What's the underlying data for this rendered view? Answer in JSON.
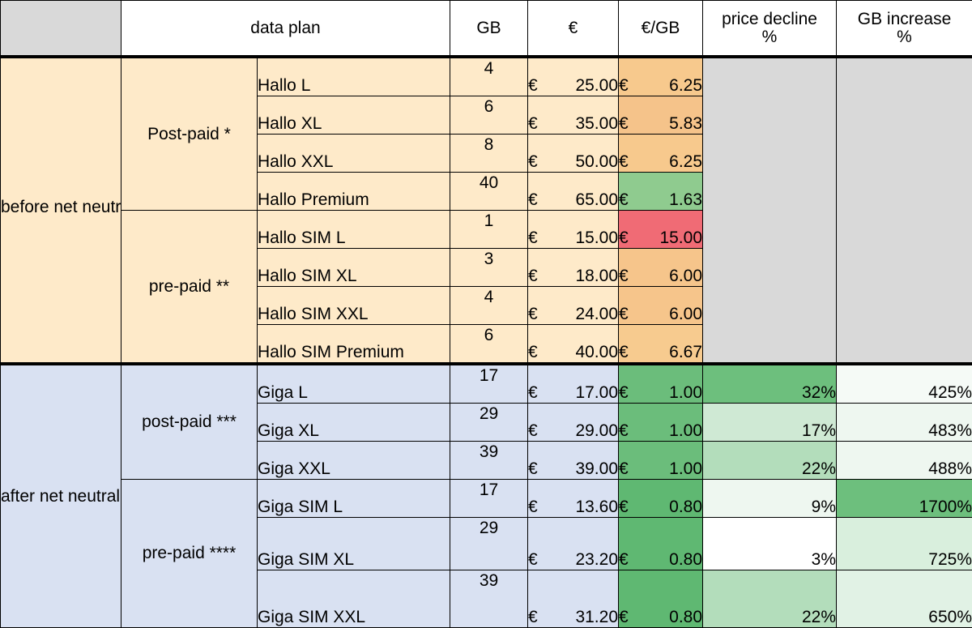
{
  "header": {
    "data_plan": "data plan",
    "gb": "GB",
    "eur": "€",
    "eur_per_gb": "€/GB",
    "price_decline_line1": "price decline",
    "price_decline_line2": "%",
    "gb_increase_line1": "GB increase",
    "gb_increase_line2": "%"
  },
  "before": {
    "label": "before net neutrality intervention",
    "postpaid_label": "Post-paid  *",
    "prepaid_label": "pre-paid **",
    "rows": [
      {
        "plan": "Hallo L",
        "gb": "4",
        "eur": "25.00",
        "eur_per_gb": "6.25",
        "color": "#f7c98d"
      },
      {
        "plan": "Hallo XL",
        "gb": "6",
        "eur": "35.00",
        "eur_per_gb": "5.83",
        "color": "#f5c38a"
      },
      {
        "plan": "Hallo XXL",
        "gb": "8",
        "eur": "50.00",
        "eur_per_gb": "6.25",
        "color": "#f7c98d"
      },
      {
        "plan": "Hallo Premium",
        "gb": "40",
        "eur": "65.00",
        "eur_per_gb": "1.63",
        "color": "#8fcb8f"
      },
      {
        "plan": "Hallo SIM L",
        "gb": "1",
        "eur": "15.00",
        "eur_per_gb": "15.00",
        "color": "#f06b75"
      },
      {
        "plan": "Hallo SIM XL",
        "gb": "3",
        "eur": "18.00",
        "eur_per_gb": "6.00",
        "color": "#f6c58b"
      },
      {
        "plan": "Hallo SIM XXL",
        "gb": "4",
        "eur": "24.00",
        "eur_per_gb": "6.00",
        "color": "#f6c58b"
      },
      {
        "plan": "Hallo SIM Premium",
        "gb": "6",
        "eur": "40.00",
        "eur_per_gb": "6.67",
        "color": "#f7cb8f"
      }
    ]
  },
  "after": {
    "label": "after net neutrality intervention",
    "postpaid_label": "post-paid ***",
    "prepaid_label": "pre-paid ****",
    "rows": [
      {
        "plan": "Giga L",
        "gb": "17",
        "eur": "17.00",
        "eur_per_gb": "1.00",
        "color": "#6bbd7b",
        "price_decline": "32%",
        "decline_color": "#6dbf7d",
        "gb_increase": "425%",
        "increase_color": "#f5faf6"
      },
      {
        "plan": "Giga XL",
        "gb": "29",
        "eur": "29.00",
        "eur_per_gb": "1.00",
        "color": "#6bbd7b",
        "price_decline": "17%",
        "decline_color": "#cfe9d4",
        "gb_increase": "483%",
        "increase_color": "#eef7f0"
      },
      {
        "plan": "Giga XXL",
        "gb": "39",
        "eur": "39.00",
        "eur_per_gb": "1.00",
        "color": "#6bbd7b",
        "price_decline": "22%",
        "decline_color": "#b3ddbb",
        "gb_increase": "488%",
        "increase_color": "#eef7f0"
      },
      {
        "plan": "Giga SIM L",
        "gb": "17",
        "eur": "13.60",
        "eur_per_gb": "0.80",
        "color": "#5fb872",
        "price_decline": "9%",
        "decline_color": "#eef7f0",
        "gb_increase": "1700%",
        "increase_color": "#6dbf7d"
      },
      {
        "plan": "Giga SIM XL",
        "gb": "29",
        "eur": "23.20",
        "eur_per_gb": "0.80",
        "color": "#5fb872",
        "price_decline": "3%",
        "decline_color": "#ffffff",
        "gb_increase": "725%",
        "increase_color": "#d9efdd"
      },
      {
        "plan": "Giga SIM XXL",
        "gb": "39",
        "eur": "31.20",
        "eur_per_gb": "0.80",
        "color": "#5fb872",
        "price_decline": "22%",
        "decline_color": "#b3ddbb",
        "gb_increase": "650%",
        "increase_color": "#e1f2e5"
      }
    ]
  },
  "currency_symbol": "€"
}
